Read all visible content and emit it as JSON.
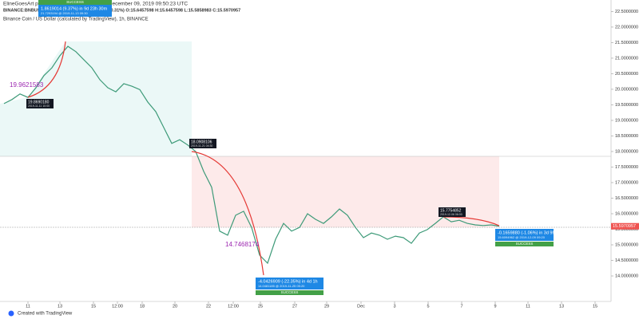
{
  "header": {
    "author_line": "ElineGoesArt published on TradingView.com, December 09, 2019 09:50:23 UTC",
    "symbol_line": "BINANCE:BNBUSD, 60  15.5970957 ▼ −0.0486641 (−0.31%)  O:15.6457598  H:15.6457598  L:15.5858983  C:15.5970957"
  },
  "chart_data": {
    "type": "line",
    "title": "Binance Coin / US Dollar (calculated by TradingView), 1h, BINANCE",
    "color": "#3d9a78",
    "values": [
      19.54,
      19.67,
      19.85,
      19.74,
      20.05,
      20.44,
      20.69,
      21.08,
      21.38,
      21.21,
      20.95,
      20.69,
      20.31,
      20.05,
      19.92,
      20.18,
      20.1,
      19.99,
      19.59,
      19.28,
      18.77,
      18.26,
      18.38,
      18.21,
      18.0,
      17.36,
      16.85,
      15.44,
      15.31,
      15.95,
      16.08,
      15.56,
      14.67,
      14.41,
      15.18,
      15.69,
      15.44,
      15.56,
      16.0,
      15.82,
      15.69,
      15.9,
      16.15,
      15.95,
      15.56,
      15.23,
      15.38,
      15.31,
      15.18,
      15.28,
      15.23,
      15.05,
      15.38,
      15.49,
      15.69,
      15.9,
      15.74,
      15.79,
      15.69,
      15.64,
      15.62,
      15.64,
      15.6
    ],
    "xlim": [
      -0.5,
      76
    ],
    "xticks": [
      {
        "value": 3,
        "label": "11"
      },
      {
        "value": 7,
        "label": "13"
      },
      {
        "value": 11.2,
        "label": "15"
      },
      {
        "value": 14.2,
        "label": "12:00"
      },
      {
        "value": 17.3,
        "label": "18"
      },
      {
        "value": 21.4,
        "label": "20"
      },
      {
        "value": 25.6,
        "label": "22"
      },
      {
        "value": 28.7,
        "label": "12:00"
      },
      {
        "value": 32.1,
        "label": "25"
      },
      {
        "value": 36.4,
        "label": "27"
      },
      {
        "value": 40.4,
        "label": "29"
      },
      {
        "value": 44.7,
        "label": "Dec"
      },
      {
        "value": 48.9,
        "label": "3"
      },
      {
        "value": 53.1,
        "label": "5"
      },
      {
        "value": 57.3,
        "label": "7"
      },
      {
        "value": 61.5,
        "label": "9"
      },
      {
        "value": 65.6,
        "label": "11"
      },
      {
        "value": 69.8,
        "label": "13"
      },
      {
        "value": 74,
        "label": "15"
      }
    ],
    "ylim": [
      13.18,
      22.87
    ],
    "yticks": [
      {
        "value": 14,
        "label": "14.0000000"
      },
      {
        "value": 14.5,
        "label": "14.5000000"
      },
      {
        "value": 15,
        "label": "15.0000000"
      },
      {
        "value": 15.5,
        "label": "15.5000000"
      },
      {
        "value": 16,
        "label": "16.0000000"
      },
      {
        "value": 16.5,
        "label": "16.5000000"
      },
      {
        "value": 17,
        "label": "17.0000000"
      },
      {
        "value": 17.5,
        "label": "17.5000000"
      },
      {
        "value": 18,
        "label": "18.0000000"
      },
      {
        "value": 18.5,
        "label": "18.5000000"
      },
      {
        "value": 19,
        "label": "19.0000000"
      },
      {
        "value": 19.5,
        "label": "19.5000000"
      },
      {
        "value": 20,
        "label": "20.0000000"
      },
      {
        "value": 20.5,
        "label": "20.5000000"
      },
      {
        "value": 21,
        "label": "21.0000000"
      },
      {
        "value": 21.5,
        "label": "21.5000000"
      },
      {
        "value": 22,
        "label": "22.0000000"
      },
      {
        "value": 22.5,
        "label": "22.5000000"
      }
    ],
    "last_price": 15.5970957,
    "last_price_color": "#ef5350",
    "annotations": [
      {
        "text": "19.9621583"
      },
      {
        "text": "19.8690180",
        "detail": "2019-11-11 10:00"
      },
      {
        "text": "1.8619014 (9.37%) in 9d 23h 30m",
        "detail": "21.7293194 @ 2019-11-13 09:30",
        "status": "SUCCESS"
      },
      {
        "text": "18.0908106",
        "detail": "2019-11-21 04:30"
      },
      {
        "text": "14.7468174"
      },
      {
        "text": "-4.0426909 (-22.35%) in 4d 1h",
        "detail": "14.0481185 @ 2019-11-25 05:20",
        "status": "SUCCESS"
      },
      {
        "text": "15.7754852",
        "detail": "2019-12-06 06:00"
      },
      {
        "text": "-0.1659880 (-1.06%) in 3d 9h",
        "detail": "15.6094962 @ 2019-12-09 09:20",
        "status": "SUCCESS"
      }
    ]
  },
  "footer": "Created with TradingView"
}
